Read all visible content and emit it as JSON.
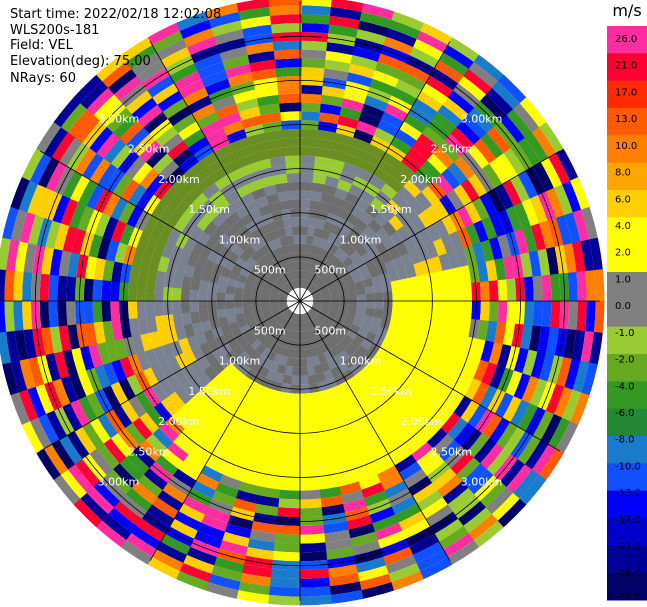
{
  "header": {
    "start_time": "Start time: 2022/02/18 12:02:08",
    "instrument": "WLS200s-181",
    "field": "Field: VEL",
    "elevation": "Elevation(deg): 75.00",
    "nrays": "NRays: 60"
  },
  "chart_data": {
    "type": "heatmap",
    "projection": "polar-ppi",
    "field": "VEL",
    "units": "m/s",
    "nrays": 60,
    "range_rings": [
      "500m",
      "1.00km",
      "1.50km",
      "2.00km",
      "2.50km",
      "3.00km"
    ],
    "range_ring_values_m": [
      500,
      1000,
      1500,
      2000,
      2500,
      3000
    ],
    "max_range_m": 3400,
    "colorbar": {
      "ticks": [
        "26.0",
        "21.0",
        "17.0",
        "13.0",
        "10.0",
        "8.0",
        "6.0",
        "4.0",
        "2.0",
        "1.0",
        "0.0",
        "-1.0",
        "-2.0",
        "-4.0",
        "-6.0",
        "-8.0",
        "-10.0",
        "-13.0",
        "-17.0",
        "-21.0",
        "-26.0",
        "-30.0"
      ],
      "colors": [
        "#ff2ea0",
        "#ff0033",
        "#ff2a00",
        "#ff5a00",
        "#ff7f00",
        "#ffa500",
        "#ffd000",
        "#ffff00",
        "#ffff00",
        "#808080",
        "#808080",
        "#99cc33",
        "#66aa22",
        "#339922",
        "#228833",
        "#1a7acc",
        "#1050ff",
        "#0000ff",
        "#0000cc",
        "#000099",
        "#000066"
      ]
    },
    "regions": [
      {
        "label": "inner clear",
        "r0_m": 0,
        "r1_m": 150,
        "value": null
      },
      {
        "label": "near-zero grey",
        "r0_m": 150,
        "r1_m": 1400,
        "value": 0.0
      },
      {
        "label": "north-west weak negative",
        "r0_m": 1400,
        "r1_m": 2000,
        "az0": 270,
        "az1": 40,
        "value": -1.5
      },
      {
        "label": "south-east positive",
        "r0_m": 1000,
        "r1_m": 2200,
        "az0": 80,
        "az1": 230,
        "value": 2.0
      },
      {
        "label": "outer noisy",
        "r0_m": 2000,
        "r1_m": 3400,
        "value": "mixed"
      }
    ]
  }
}
